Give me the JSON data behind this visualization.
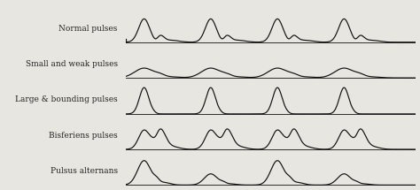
{
  "labels": [
    "Normal pulses",
    "Small and weak pulses",
    "Large & bounding pulses",
    "Bisferiens pulses",
    "Pulsus alternans"
  ],
  "background_color": "#ffffff",
  "line_color": "#111111",
  "label_color": "#222222",
  "fig_bg": "#e8e6e0",
  "label_fontsize": 6.5,
  "pulse_types": [
    "normal",
    "small_weak",
    "large_bounding",
    "bisferiens",
    "pulsus_alternans"
  ]
}
